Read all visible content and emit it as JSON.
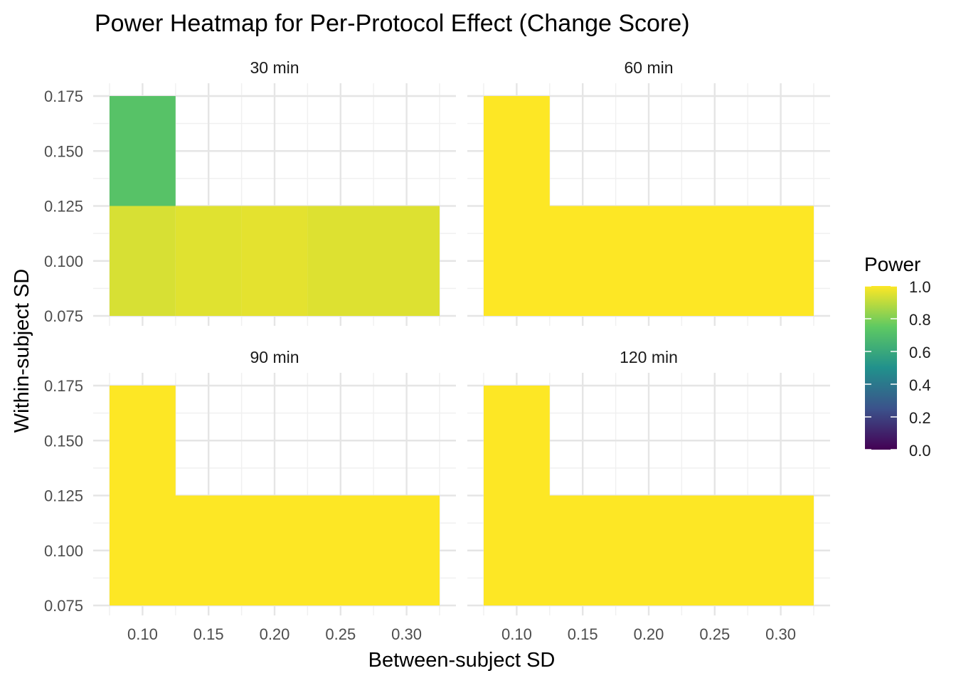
{
  "chart_data": {
    "type": "heatmap",
    "title": "Power Heatmap for Per-Protocol Effect (Change Score)",
    "xlabel": "Between-subject SD",
    "ylabel": "Within-subject SD",
    "xlim": [
      0.075,
      0.325
    ],
    "ylim": [
      0.075,
      0.175
    ],
    "x_ticks": [
      "0.10",
      "0.15",
      "0.20",
      "0.25",
      "0.30"
    ],
    "y_ticks": [
      "0.075",
      "0.100",
      "0.125",
      "0.150",
      "0.175"
    ],
    "legend": {
      "title": "Power",
      "position": "right",
      "ticks": [
        "1.0",
        "0.8",
        "0.6",
        "0.4",
        "0.2",
        "0.0"
      ],
      "colorscale": [
        "#440154",
        "#3b528b",
        "#21918c",
        "#5ec962",
        "#fde725"
      ]
    },
    "grid": true,
    "panels": [
      {
        "label": "30 min",
        "cells": [
          {
            "x_min": 0.075,
            "x_max": 0.125,
            "y_min": 0.125,
            "y_max": 0.175,
            "power": 0.72
          },
          {
            "x_min": 0.075,
            "x_max": 0.125,
            "y_min": 0.075,
            "y_max": 0.125,
            "power": 0.94
          },
          {
            "x_min": 0.125,
            "x_max": 0.175,
            "y_min": 0.075,
            "y_max": 0.125,
            "power": 0.955
          },
          {
            "x_min": 0.175,
            "x_max": 0.225,
            "y_min": 0.075,
            "y_max": 0.125,
            "power": 0.96
          },
          {
            "x_min": 0.225,
            "x_max": 0.325,
            "y_min": 0.075,
            "y_max": 0.125,
            "power": 0.95
          }
        ]
      },
      {
        "label": "60 min",
        "cells": [
          {
            "x_min": 0.075,
            "x_max": 0.125,
            "y_min": 0.125,
            "y_max": 0.175,
            "power": 1.0
          },
          {
            "x_min": 0.075,
            "x_max": 0.325,
            "y_min": 0.075,
            "y_max": 0.125,
            "power": 1.0
          }
        ]
      },
      {
        "label": "90 min",
        "cells": [
          {
            "x_min": 0.075,
            "x_max": 0.125,
            "y_min": 0.125,
            "y_max": 0.175,
            "power": 1.0
          },
          {
            "x_min": 0.075,
            "x_max": 0.325,
            "y_min": 0.075,
            "y_max": 0.125,
            "power": 1.0
          }
        ]
      },
      {
        "label": "120 min",
        "cells": [
          {
            "x_min": 0.075,
            "x_max": 0.125,
            "y_min": 0.125,
            "y_max": 0.175,
            "power": 1.0
          },
          {
            "x_min": 0.075,
            "x_max": 0.325,
            "y_min": 0.075,
            "y_max": 0.125,
            "power": 1.0
          }
        ]
      }
    ]
  }
}
